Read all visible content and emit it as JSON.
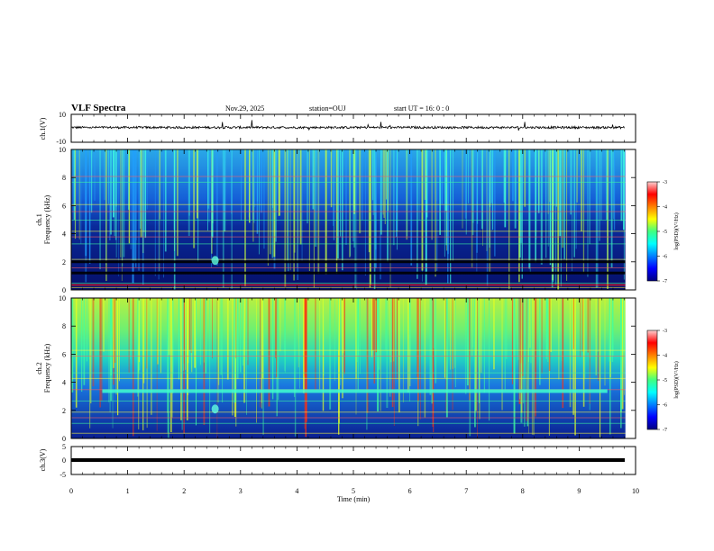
{
  "header": {
    "title": "VLF Spectra",
    "date": "Nov.29, 2025",
    "station": "station=OUJ",
    "start": "start UT =  16: 0  : 0"
  },
  "chart_data": [
    {
      "type": "line",
      "name": "ch1-waveform",
      "ylabel": "ch.1(V)",
      "ylim": [
        -10,
        10
      ],
      "yticks": [
        "10",
        "-10"
      ],
      "xlim": [
        0,
        10
      ]
    },
    {
      "type": "heatmap",
      "name": "ch1-spectrogram",
      "ylabel_top": "ch.1",
      "ylabel": "Frequency (kHz)",
      "ylim": [
        0,
        10
      ],
      "yticks": [
        "0",
        "2",
        "4",
        "6",
        "8",
        "10"
      ],
      "xlim": [
        0,
        10
      ],
      "colorbar": {
        "label": "log(PSD)(V²/Hz)",
        "ticks": [
          "-3",
          "-4",
          "-5",
          "-6",
          "-7"
        ],
        "range": [
          -7,
          -3
        ]
      }
    },
    {
      "type": "heatmap",
      "name": "ch2-spectrogram",
      "ylabel_top": "ch.2",
      "ylabel": "Frequency (kHz)",
      "ylim": [
        0,
        10
      ],
      "yticks": [
        "0",
        "2",
        "4",
        "6",
        "8",
        "10"
      ],
      "xlim": [
        0,
        10
      ],
      "colorbar": {
        "label": "log(PSD)(V²/Hz)",
        "ticks": [
          "-3",
          "-4",
          "-5",
          "-6",
          "-7"
        ],
        "range": [
          -7,
          -3
        ]
      }
    },
    {
      "type": "line",
      "name": "ch3-waveform",
      "ylabel": "ch.3(V)",
      "ylim": [
        -5,
        5
      ],
      "yticks": [
        "5",
        "0",
        "-5"
      ],
      "xlim": [
        0,
        10
      ]
    }
  ],
  "xaxis": {
    "label": "Time (min)",
    "ticks": [
      "0",
      "1",
      "2",
      "3",
      "4",
      "5",
      "6",
      "7",
      "8",
      "9",
      "10"
    ]
  }
}
